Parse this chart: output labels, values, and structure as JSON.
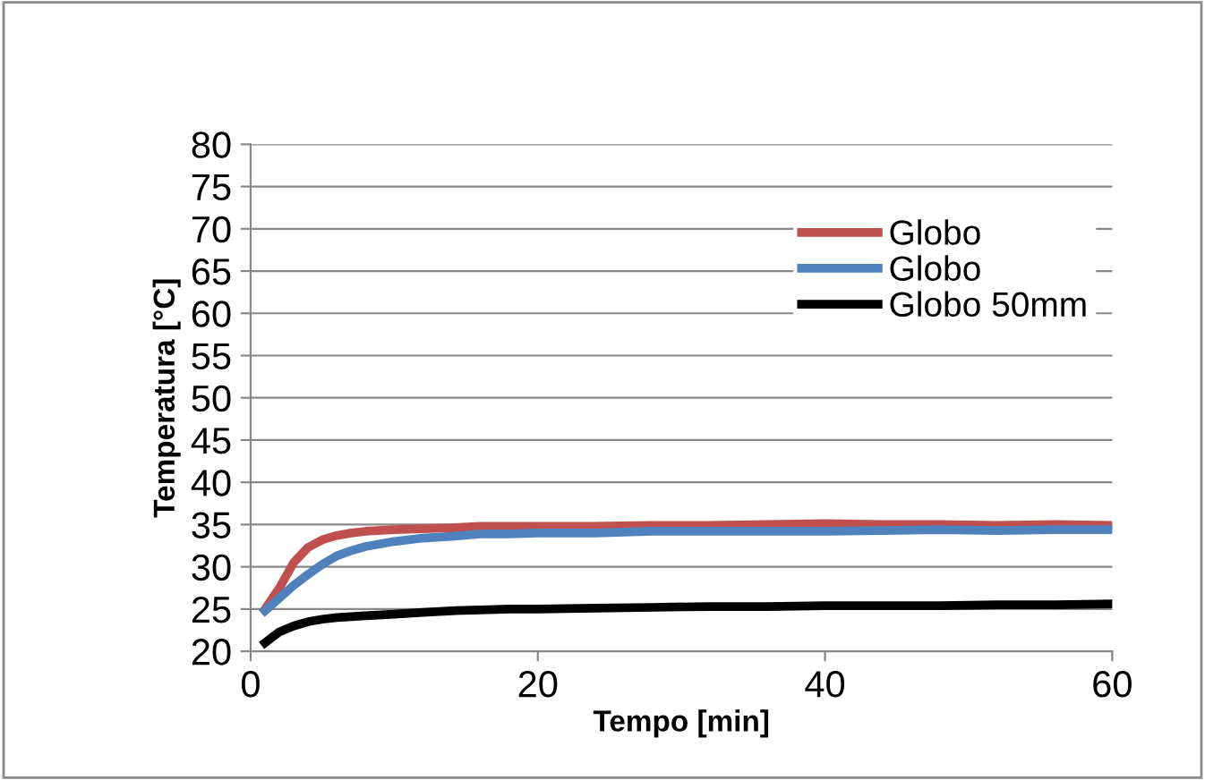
{
  "chart_data": {
    "type": "line",
    "xlabel": "Tempo [min]",
    "ylabel": "Temperatura [°C]",
    "xlim": [
      0,
      60
    ],
    "xticks": [
      0,
      20,
      40,
      60
    ],
    "ylim": [
      20,
      80
    ],
    "yticks": [
      20,
      25,
      30,
      35,
      40,
      45,
      50,
      55,
      60,
      65,
      70,
      75,
      80
    ],
    "grid": "y",
    "legend": "top right",
    "marker": "none",
    "line_style": "solid",
    "x": [
      1,
      2,
      3,
      4,
      5,
      6,
      7,
      8,
      10,
      12,
      14,
      16,
      18,
      20,
      24,
      28,
      32,
      36,
      40,
      44,
      48,
      52,
      56,
      60
    ],
    "series": [
      {
        "name": "Globo",
        "color": "#c0504d",
        "values": [
          25,
          27.5,
          30.5,
          32.3,
          33.2,
          33.7,
          34,
          34.2,
          34.4,
          34.5,
          34.6,
          34.8,
          34.8,
          34.8,
          34.8,
          34.9,
          34.9,
          35,
          35.1,
          35,
          35,
          34.9,
          35,
          34.9
        ]
      },
      {
        "name": "Globo",
        "color": "#4f81bd",
        "values": [
          24.8,
          26.3,
          27.8,
          29.1,
          30.3,
          31.3,
          31.9,
          32.4,
          33,
          33.4,
          33.6,
          33.9,
          33.9,
          34,
          34,
          34.2,
          34.2,
          34.2,
          34.2,
          34.3,
          34.4,
          34.3,
          34.4,
          34.4
        ]
      },
      {
        "name": "Globo 50mm",
        "color": "#000000",
        "values": [
          21,
          22.3,
          23,
          23.5,
          23.8,
          24,
          24.1,
          24.2,
          24.4,
          24.6,
          24.8,
          24.9,
          25,
          25,
          25.1,
          25.2,
          25.3,
          25.3,
          25.4,
          25.4,
          25.4,
          25.5,
          25.5,
          25.6
        ]
      }
    ]
  }
}
